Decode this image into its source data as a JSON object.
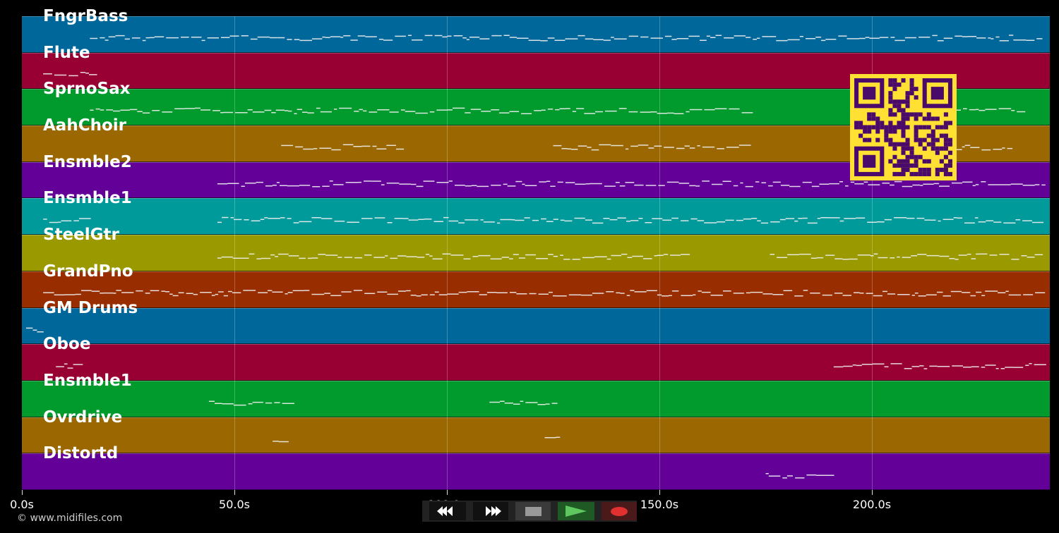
{
  "plot": {
    "time_axis": {
      "ticks": [
        {
          "label": "0.0s",
          "seconds": 0
        },
        {
          "label": "50.0s",
          "seconds": 50
        },
        {
          "label": "100.0s",
          "seconds": 100
        },
        {
          "label": "150.0s",
          "seconds": 150
        },
        {
          "label": "200.0s",
          "seconds": 200
        }
      ],
      "max_seconds": 242
    },
    "tracks": [
      {
        "name": "FngrBass",
        "color": "#00679a"
      },
      {
        "name": "Flute",
        "color": "#980033"
      },
      {
        "name": "SprnoSax",
        "color": "#009a2d"
      },
      {
        "name": "AahChoir",
        "color": "#9a6700"
      },
      {
        "name": "Ensmble2",
        "color": "#620098"
      },
      {
        "name": "Ensmble1",
        "color": "#009a9a"
      },
      {
        "name": "SteelGtr",
        "color": "#9a9a00"
      },
      {
        "name": "GrandPno",
        "color": "#982d00"
      },
      {
        "name": "GM Drums",
        "color": "#00679a"
      },
      {
        "name": "Oboe",
        "color": "#980033"
      },
      {
        "name": "Ensmble1",
        "color": "#009a2d"
      },
      {
        "name": "Ovrdrive",
        "color": "#9a6700"
      },
      {
        "name": "Distortd",
        "color": "#620098"
      }
    ]
  },
  "transport": {
    "rewind": "rewind-icon",
    "fast_forward": "fast-forward-icon",
    "stop": "stop-icon",
    "play": "play-icon",
    "record": "record-icon"
  },
  "footer": {
    "copyright": "© www.midifiles.com"
  },
  "qr_code": {
    "fg": "#4a0a6a",
    "bg": "#ffe033"
  }
}
